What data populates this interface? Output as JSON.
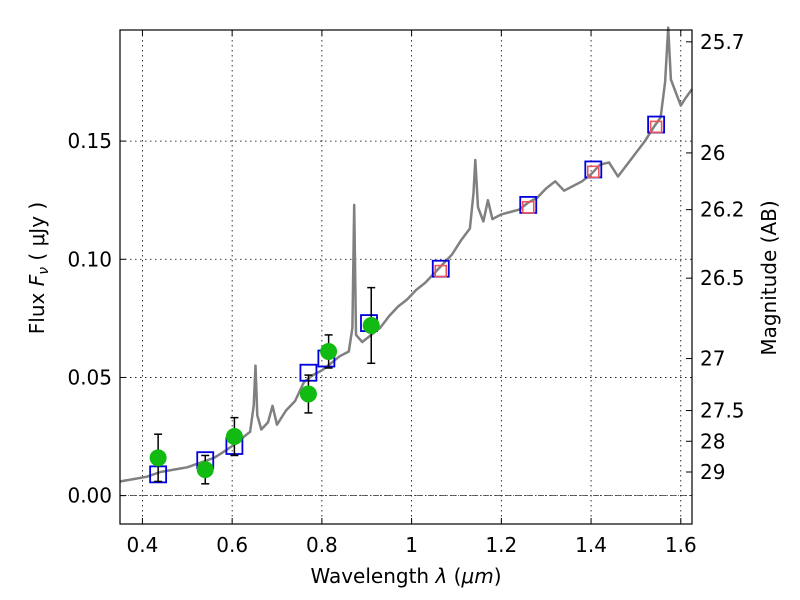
{
  "chart_data": {
    "type": "scatter",
    "xlabel_prefix": "Wavelength  ",
    "xlabel_symbol": "λ",
    "xlabel_unit_open": " (",
    "xlabel_unit": "μm",
    "xlabel_unit_close": ")",
    "ylabel_prefix": "Flux  ",
    "ylabel_symbol": "F",
    "ylabel_sub": "ν",
    "ylabel_unit": "  ( μJy )",
    "y2label": "Magnitude (AB)",
    "xlim": [
      0.35,
      1.625
    ],
    "ylim": [
      -0.012,
      0.197
    ],
    "x_ticks": [
      0.4,
      0.6,
      0.8,
      1.0,
      1.2,
      1.4,
      1.6
    ],
    "x_tick_labels": [
      "0.4",
      "0.6",
      "0.8",
      "1",
      "1.2",
      "1.4",
      "1.6"
    ],
    "y_ticks": [
      0.0,
      0.05,
      0.1,
      0.15
    ],
    "y_tick_labels": [
      "0.00",
      "0.05",
      "0.10",
      "0.15"
    ],
    "mag_ticks": [
      {
        "label": "25.7",
        "flux": 0.192
      },
      {
        "label": "26",
        "flux": 0.145
      },
      {
        "label": "26.2",
        "flux": 0.121
      },
      {
        "label": "26.5",
        "flux": 0.092
      },
      {
        "label": "27",
        "flux": 0.058
      },
      {
        "label": "27.5",
        "flux": 0.036
      },
      {
        "label": "28",
        "flux": 0.023
      },
      {
        "label": "29",
        "flux": 0.01
      }
    ],
    "colors": {
      "spectrum": "#808080",
      "model_box": "#0000dd",
      "observed": "#11bb11",
      "nir_marker": "#ee5555",
      "errorbar": "#000000",
      "zero_line": "#333333"
    },
    "spectrum": [
      [
        0.35,
        0.006
      ],
      [
        0.38,
        0.007
      ],
      [
        0.41,
        0.008
      ],
      [
        0.44,
        0.01
      ],
      [
        0.47,
        0.011
      ],
      [
        0.5,
        0.012
      ],
      [
        0.53,
        0.014
      ],
      [
        0.56,
        0.016
      ],
      [
        0.585,
        0.019
      ],
      [
        0.6,
        0.021
      ],
      [
        0.62,
        0.024
      ],
      [
        0.64,
        0.027
      ],
      [
        0.648,
        0.038
      ],
      [
        0.652,
        0.055
      ],
      [
        0.656,
        0.034
      ],
      [
        0.665,
        0.028
      ],
      [
        0.68,
        0.031
      ],
      [
        0.69,
        0.038
      ],
      [
        0.7,
        0.03
      ],
      [
        0.72,
        0.036
      ],
      [
        0.74,
        0.04
      ],
      [
        0.75,
        0.044
      ],
      [
        0.76,
        0.048
      ],
      [
        0.78,
        0.051
      ],
      [
        0.8,
        0.053
      ],
      [
        0.82,
        0.056
      ],
      [
        0.84,
        0.059
      ],
      [
        0.86,
        0.061
      ],
      [
        0.868,
        0.071
      ],
      [
        0.872,
        0.123
      ],
      [
        0.876,
        0.068
      ],
      [
        0.89,
        0.065
      ],
      [
        0.91,
        0.068
      ],
      [
        0.93,
        0.071
      ],
      [
        0.95,
        0.076
      ],
      [
        0.97,
        0.08
      ],
      [
        0.99,
        0.083
      ],
      [
        1.01,
        0.087
      ],
      [
        1.03,
        0.09
      ],
      [
        1.05,
        0.094
      ],
      [
        1.07,
        0.098
      ],
      [
        1.09,
        0.102
      ],
      [
        1.11,
        0.108
      ],
      [
        1.13,
        0.113
      ],
      [
        1.138,
        0.128
      ],
      [
        1.142,
        0.142
      ],
      [
        1.148,
        0.122
      ],
      [
        1.16,
        0.116
      ],
      [
        1.17,
        0.125
      ],
      [
        1.18,
        0.117
      ],
      [
        1.2,
        0.119
      ],
      [
        1.22,
        0.12
      ],
      [
        1.24,
        0.121
      ],
      [
        1.26,
        0.124
      ],
      [
        1.28,
        0.126
      ],
      [
        1.3,
        0.13
      ],
      [
        1.32,
        0.133
      ],
      [
        1.34,
        0.129
      ],
      [
        1.36,
        0.131
      ],
      [
        1.38,
        0.133
      ],
      [
        1.4,
        0.136
      ],
      [
        1.42,
        0.14
      ],
      [
        1.44,
        0.141
      ],
      [
        1.46,
        0.135
      ],
      [
        1.48,
        0.14
      ],
      [
        1.5,
        0.145
      ],
      [
        1.52,
        0.15
      ],
      [
        1.54,
        0.156
      ],
      [
        1.555,
        0.16
      ],
      [
        1.565,
        0.175
      ],
      [
        1.572,
        0.198
      ],
      [
        1.578,
        0.176
      ],
      [
        1.59,
        0.17
      ],
      [
        1.6,
        0.165
      ],
      [
        1.61,
        0.168
      ],
      [
        1.625,
        0.172
      ]
    ],
    "model_points": [
      {
        "x": 0.435,
        "y": 0.009
      },
      {
        "x": 0.54,
        "y": 0.015
      },
      {
        "x": 0.605,
        "y": 0.021
      },
      {
        "x": 0.77,
        "y": 0.052
      },
      {
        "x": 0.81,
        "y": 0.058
      },
      {
        "x": 0.905,
        "y": 0.073
      },
      {
        "x": 1.065,
        "y": 0.096
      },
      {
        "x": 1.26,
        "y": 0.123
      },
      {
        "x": 1.405,
        "y": 0.138
      },
      {
        "x": 1.545,
        "y": 0.157
      }
    ],
    "observed_points": [
      {
        "x": 0.435,
        "y": 0.016,
        "err": 0.01
      },
      {
        "x": 0.54,
        "y": 0.011,
        "err": 0.006
      },
      {
        "x": 0.605,
        "y": 0.025,
        "err": 0.008
      },
      {
        "x": 0.77,
        "y": 0.043,
        "err": 0.008
      },
      {
        "x": 0.815,
        "y": 0.061,
        "err": 0.007
      },
      {
        "x": 0.91,
        "y": 0.072,
        "err": 0.016
      }
    ],
    "nir_points": [
      {
        "x": 1.065,
        "y": 0.095
      },
      {
        "x": 1.26,
        "y": 0.122
      },
      {
        "x": 1.405,
        "y": 0.137
      },
      {
        "x": 1.545,
        "y": 0.156
      }
    ]
  }
}
